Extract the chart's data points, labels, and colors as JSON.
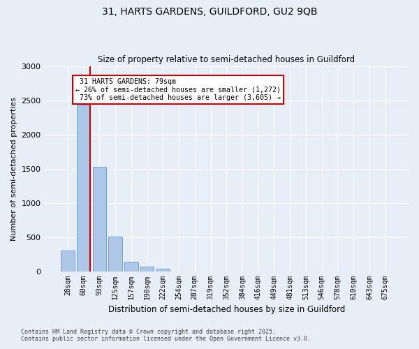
{
  "title1": "31, HARTS GARDENS, GUILDFORD, GU2 9QB",
  "title2": "Size of property relative to semi-detached houses in Guildford",
  "xlabel": "Distribution of semi-detached houses by size in Guildford",
  "ylabel": "Number of semi-detached properties",
  "property_label": "31 HARTS GARDENS: 79sqm",
  "pct_smaller": 26,
  "pct_larger": 73,
  "count_smaller": 1272,
  "count_larger": 3605,
  "bin_labels": [
    "28sqm",
    "60sqm",
    "93sqm",
    "125sqm",
    "157sqm",
    "190sqm",
    "222sqm",
    "254sqm",
    "287sqm",
    "319sqm",
    "352sqm",
    "384sqm",
    "416sqm",
    "449sqm",
    "481sqm",
    "513sqm",
    "546sqm",
    "578sqm",
    "610sqm",
    "643sqm",
    "675sqm"
  ],
  "bar_values": [
    305,
    2430,
    1530,
    510,
    140,
    65,
    40,
    0,
    0,
    0,
    0,
    0,
    0,
    0,
    0,
    0,
    0,
    0,
    0,
    0,
    0
  ],
  "bar_color": "#aec6e8",
  "bar_edge_color": "#5b9bd5",
  "vline_color": "#cc0000",
  "background_color": "#e8eef7",
  "grid_color": "#ffffff",
  "ann_box_color": "#cc0000",
  "footer1": "Contains HM Land Registry data © Crown copyright and database right 2025.",
  "footer2": "Contains public sector information licensed under the Open Government Licence v3.0.",
  "ylim": [
    0,
    3000
  ],
  "yticks": [
    0,
    500,
    1000,
    1500,
    2000,
    2500,
    3000
  ]
}
